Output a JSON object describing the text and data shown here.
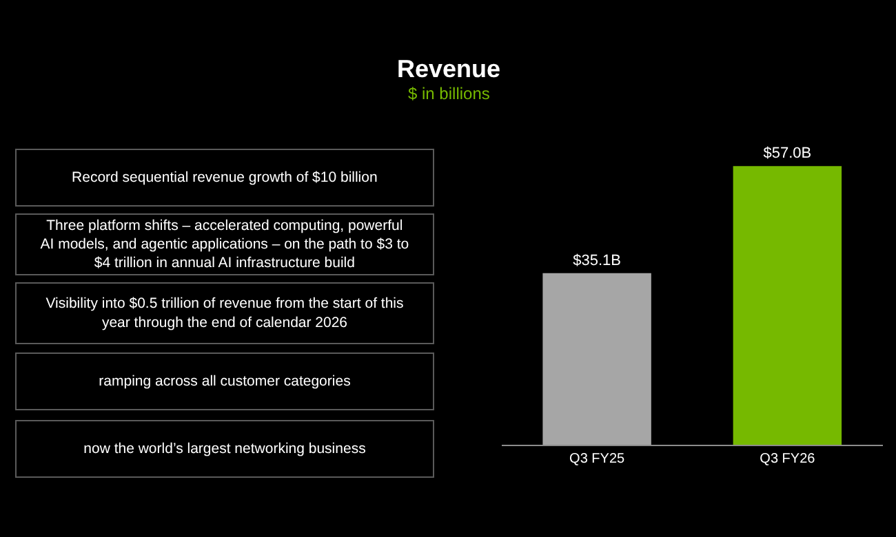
{
  "chart_data": {
    "type": "bar",
    "title": "Revenue",
    "subtitle": "$ in billions",
    "categories": [
      "Q3 FY25",
      "Q3 FY26"
    ],
    "values": [
      35.1,
      57.0
    ],
    "colors": [
      "#a6a6a6",
      "#76b900"
    ],
    "value_labels": [
      "$35.1B",
      "$57.0B"
    ],
    "annotations": [
      "Record sequential revenue growth of $10 billion",
      "Three platform shifts – accelerated computing, powerful AI models, and agentic applications – on the path to $3 to $4 trillion in annual AI infrastructure build",
      "Visibility into $0.5 trillion of revenue from the start of this year through the end of calendar 2026",
      "ramping across all customer categories",
      "now the world’s largest networking business"
    ],
    "grid": false
  }
}
